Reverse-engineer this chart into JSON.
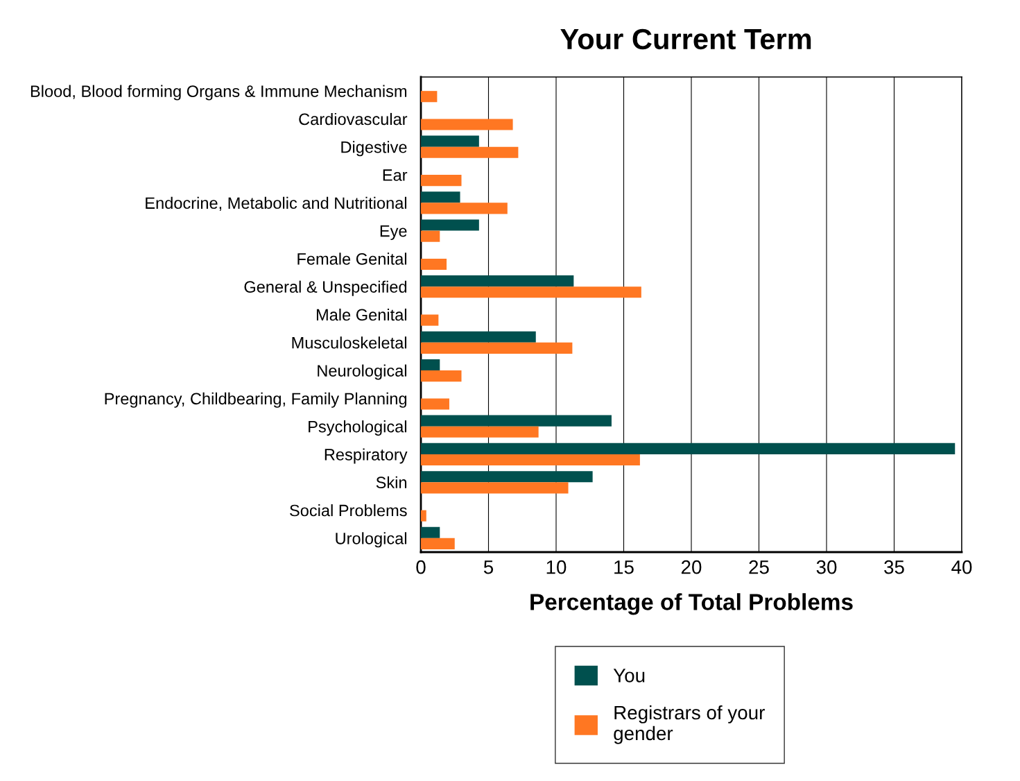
{
  "chart_data": {
    "type": "bar",
    "orientation": "horizontal",
    "title": "Your Current Term",
    "xlabel": "Percentage of Total Problems",
    "categories": [
      "Blood, Blood forming Organs & Immune Mechanism",
      "Cardiovascular",
      "Digestive",
      "Ear",
      "Endocrine, Metabolic and Nutritional",
      "Eye",
      "Female Genital",
      "General & Unspecified",
      "Male Genital",
      "Musculoskeletal",
      "Neurological",
      "Pregnancy, Childbearing, Family Planning",
      "Psychological",
      "Respiratory",
      "Skin",
      "Social Problems",
      "Urological"
    ],
    "series": [
      {
        "name": "You",
        "color": "#00504e",
        "values": [
          null,
          null,
          4.3,
          null,
          2.9,
          4.3,
          null,
          11.3,
          null,
          8.5,
          1.4,
          null,
          14.1,
          39.5,
          12.7,
          null,
          1.4
        ]
      },
      {
        "name": "Registrars of your\ngender",
        "color": "#ff7722",
        "values": [
          1.2,
          6.8,
          7.2,
          3.0,
          6.4,
          1.4,
          1.9,
          16.3,
          1.3,
          11.2,
          3.0,
          2.1,
          8.7,
          16.2,
          10.9,
          0.4,
          2.5
        ]
      }
    ],
    "xlim": [
      0,
      40
    ],
    "xticks": [
      0,
      5,
      10,
      15,
      20,
      25,
      30,
      35,
      40
    ],
    "grid": "x",
    "legend": "bottom"
  }
}
